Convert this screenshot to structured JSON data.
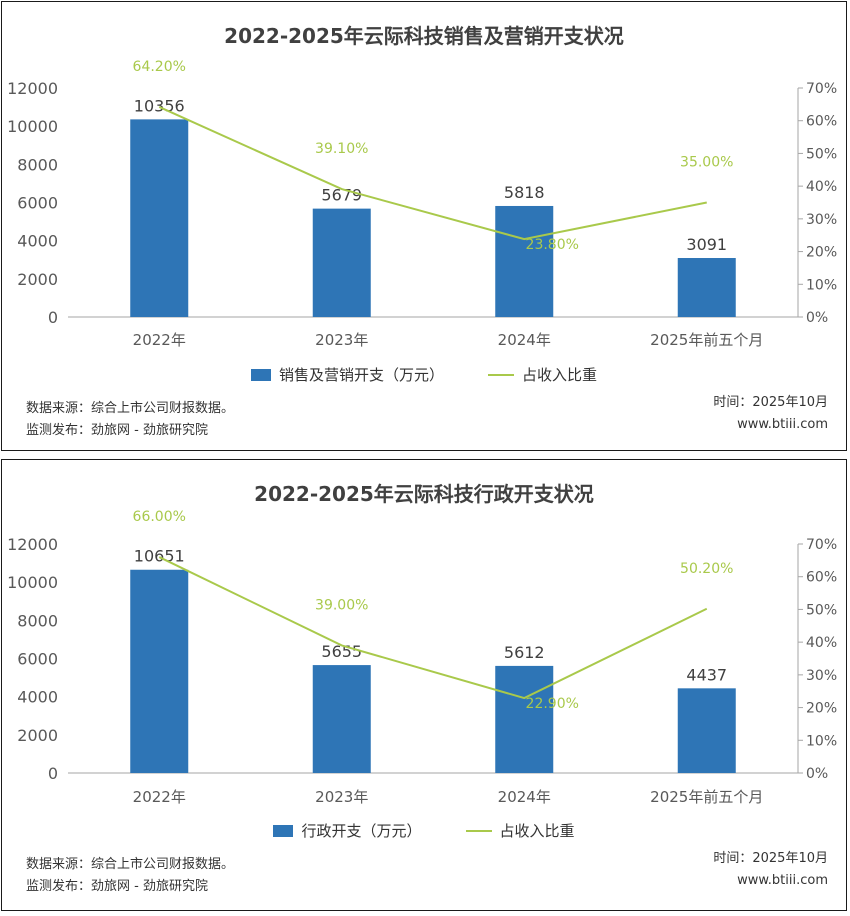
{
  "colors": {
    "bar": "#2e75b6",
    "line": "#a9c94b",
    "axis": "#595959",
    "pct_label": "#a9c94b"
  },
  "chart_data": [
    {
      "type": "bar+line",
      "title": "2022-2025年云际科技销售及营销开支状况",
      "categories": [
        "2022年",
        "2023年",
        "2024年",
        "2025年前五个月"
      ],
      "series": [
        {
          "name": "销售及营销开支（万元）",
          "type": "bar",
          "axis": "left",
          "values": [
            10356,
            5679,
            5818,
            3091
          ]
        },
        {
          "name": "占收入比重",
          "type": "line",
          "axis": "right",
          "values": [
            64.2,
            39.1,
            23.8,
            35.0
          ],
          "labels": [
            "64.20%",
            "39.10%",
            "23.80%",
            "35.00%"
          ]
        }
      ],
      "ylim": [
        0,
        12000
      ],
      "yticks": [
        "0",
        "2000",
        "4000",
        "6000",
        "8000",
        "10000",
        "12000"
      ],
      "y2lim": [
        0,
        70
      ],
      "y2ticks": [
        "0%",
        "10%",
        "20%",
        "30%",
        "40%",
        "50%",
        "60%",
        "70%"
      ],
      "legend": "bottom",
      "grid": false,
      "source": "数据来源：综合上市公司财报数据。",
      "publisher": "监测发布：劲旅网 - 劲旅研究院",
      "time": "时间：2025年10月",
      "site": "www.btiii.com"
    },
    {
      "type": "bar+line",
      "title": "2022-2025年云际科技行政开支状况",
      "categories": [
        "2022年",
        "2023年",
        "2024年",
        "2025年前五个月"
      ],
      "series": [
        {
          "name": "行政开支（万元）",
          "type": "bar",
          "axis": "left",
          "values": [
            10651,
            5655,
            5612,
            4437
          ]
        },
        {
          "name": "占收入比重",
          "type": "line",
          "axis": "right",
          "values": [
            66.0,
            39.0,
            22.9,
            50.2
          ],
          "labels": [
            "66.00%",
            "39.00%",
            "22.90%",
            "50.20%"
          ]
        }
      ],
      "ylim": [
        0,
        12000
      ],
      "yticks": [
        "0",
        "2000",
        "4000",
        "6000",
        "8000",
        "10000",
        "12000"
      ],
      "y2lim": [
        0,
        70
      ],
      "y2ticks": [
        "0%",
        "10%",
        "20%",
        "30%",
        "40%",
        "50%",
        "60%",
        "70%"
      ],
      "legend": "bottom",
      "grid": false,
      "source": "数据来源：综合上市公司财报数据。",
      "publisher": "监测发布：劲旅网 - 劲旅研究院",
      "time": "时间：2025年10月",
      "site": "www.btiii.com"
    }
  ]
}
